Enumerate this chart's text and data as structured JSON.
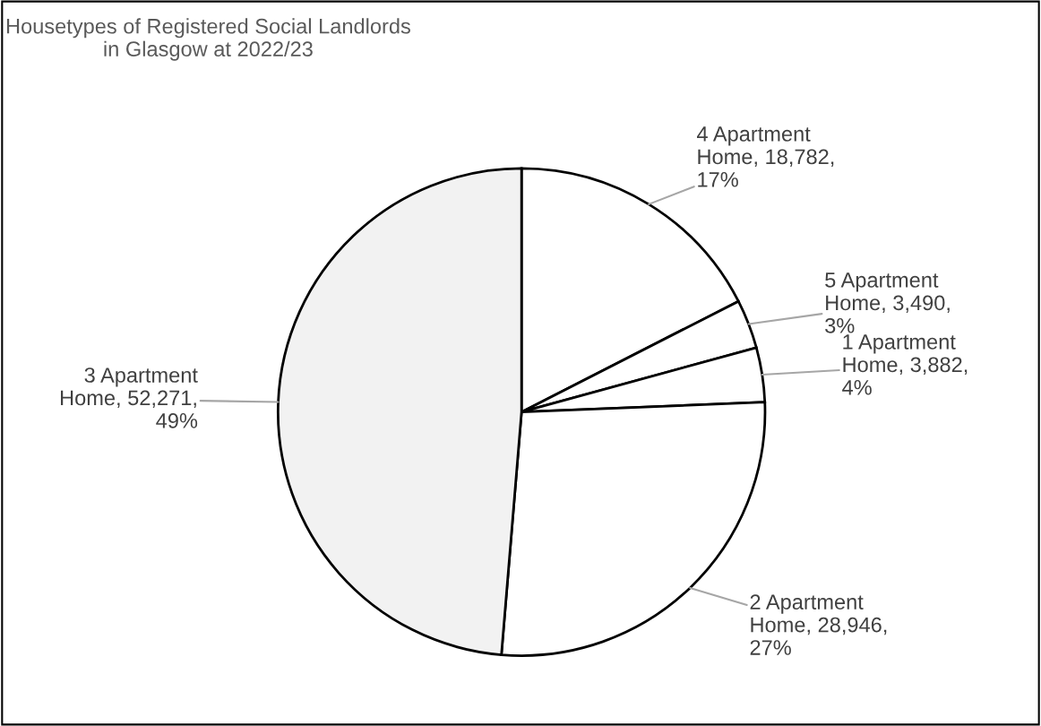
{
  "chart_data": {
    "type": "pie",
    "title": "Housetypes of Registered Social Landlords\nin Glasgow at 2022/23",
    "categories": [
      "4 Apartment\nHome",
      "5 Apartment\nHome",
      "1 Apartment\nHome",
      "2 Apartment\nHome",
      "3 Apartment\nHome"
    ],
    "values": [
      18782,
      3490,
      3882,
      28946,
      52271
    ],
    "value_labels": [
      "18,782,\n17%",
      "3,490,\n3%",
      "3,882,\n4%",
      "28,946,\n27%",
      "52,271,\n49%"
    ],
    "colors": [
      "#ffffff",
      "#ffffff",
      "#ffffff",
      "#ffffff",
      "#f2f2f2"
    ],
    "legend": false
  }
}
